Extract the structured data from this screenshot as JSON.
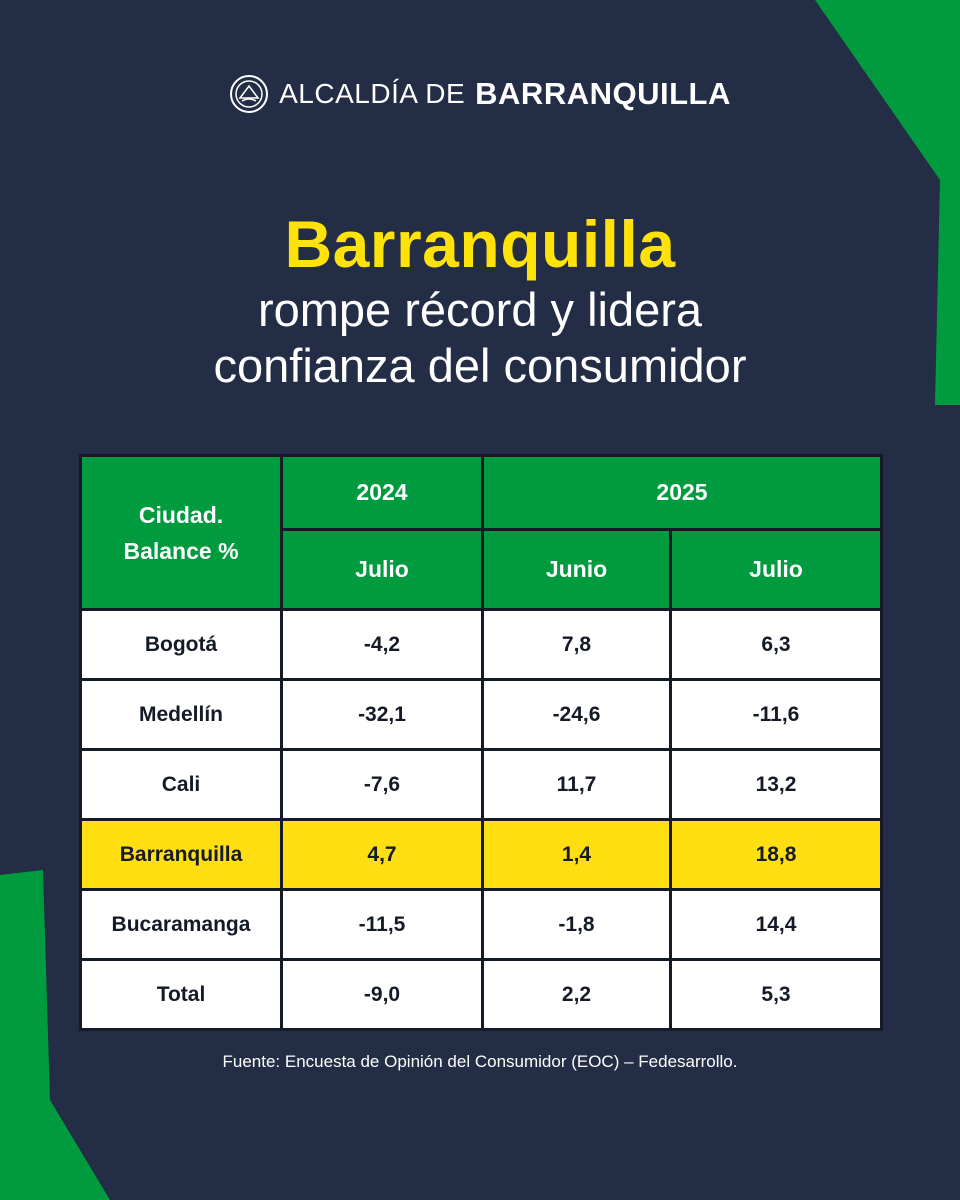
{
  "colors": {
    "background": "#232d45",
    "accent_green": "#009b3e",
    "accent_yellow": "#ffe20a",
    "highlight_row": "#ffde12"
  },
  "header": {
    "brand_prefix": "ALCALDÍA DE",
    "brand_name": "BARRANQUILLA",
    "seal_icon": "city-seal-icon"
  },
  "title": {
    "main": "Barranquilla",
    "line2": "rompe récord y lidera",
    "line3": "confianza del consumidor"
  },
  "table": {
    "corner_line1": "Ciudad.",
    "corner_line2": "Balance %",
    "year_2024": "2024",
    "year_2025": "2025",
    "months": [
      "Julio",
      "Junio",
      "Julio"
    ],
    "rows": [
      {
        "city": "Bogotá",
        "values": [
          "-4,2",
          "7,8",
          "6,3"
        ]
      },
      {
        "city": "Medellín",
        "values": [
          "-32,1",
          "-24,6",
          "-11,6"
        ]
      },
      {
        "city": "Cali",
        "values": [
          "-7,6",
          "11,7",
          "13,2"
        ]
      },
      {
        "city": "Barranquilla",
        "values": [
          "4,7",
          "1,4",
          "18,8"
        ],
        "highlighted": true
      },
      {
        "city": "Bucaramanga",
        "values": [
          "-11,5",
          "-1,8",
          "14,4"
        ]
      },
      {
        "city": "Total",
        "values": [
          "-9,0",
          "2,2",
          "5,3"
        ]
      }
    ]
  },
  "source": "Fuente: Encuesta de Opinión del Consumidor (EOC) – Fedesarrollo."
}
